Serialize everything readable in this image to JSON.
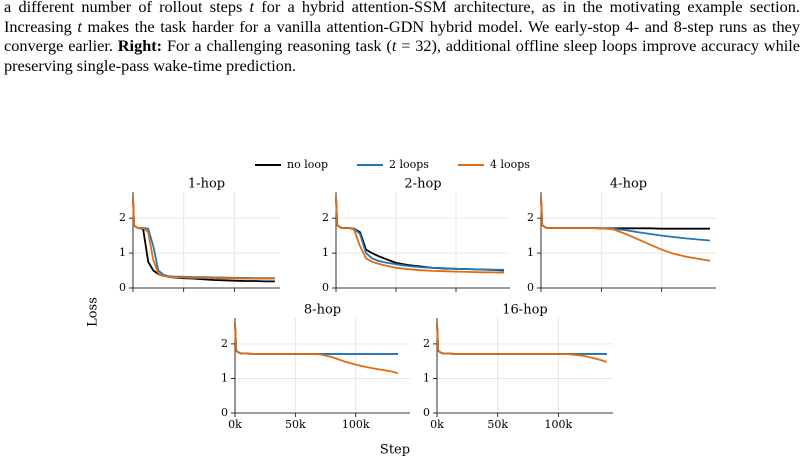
{
  "text": {
    "parts": [
      "a different number of rollout steps ",
      "t",
      " for a hybrid attention-SSM architecture, as in the motivating example section. Increasing ",
      "t",
      " makes the task harder for a vanilla attention-GDN hybrid model. We early-stop 4- and 8-step runs as they converge earlier. ",
      "Right:",
      " For a challenging reasoning task (",
      "t",
      " = 32), additional offline sleep loops improve accuracy while preserving single-pass wake-time prediction."
    ]
  },
  "figure": {
    "xlabel": "Step",
    "ylabel": "Loss"
  },
  "chart_data": [
    {
      "type": "line",
      "title": "1-hop",
      "x": [
        0,
        1000,
        3000,
        5000,
        10000,
        15000,
        20000,
        25000,
        30000,
        35000,
        40000,
        50000,
        60000,
        70000,
        80000,
        90000,
        100000,
        110000,
        120000,
        130000,
        140000
      ],
      "series": [
        {
          "name": "no loop",
          "color": "#000000",
          "values": [
            2.6,
            1.8,
            1.75,
            1.72,
            1.7,
            0.75,
            0.5,
            0.4,
            0.35,
            0.32,
            0.3,
            0.28,
            0.27,
            0.25,
            0.23,
            0.22,
            0.21,
            0.2,
            0.2,
            0.19,
            0.19
          ]
        },
        {
          "name": "2 loops",
          "color": "#1f77b4",
          "values": [
            2.6,
            1.8,
            1.75,
            1.72,
            1.72,
            1.7,
            1.2,
            0.5,
            0.38,
            0.34,
            0.33,
            0.32,
            0.31,
            0.31,
            0.3,
            0.3,
            0.29,
            0.29,
            0.28,
            0.28,
            0.28
          ]
        },
        {
          "name": "4 loops",
          "color": "#e06c12",
          "values": [
            2.6,
            1.8,
            1.75,
            1.72,
            1.72,
            1.6,
            0.8,
            0.42,
            0.35,
            0.32,
            0.31,
            0.3,
            0.29,
            0.29,
            0.28,
            0.28,
            0.28,
            0.27,
            0.27,
            0.27,
            0.27
          ]
        }
      ],
      "xlim": [
        0,
        145000
      ],
      "ylim": [
        0,
        2.75
      ],
      "xticks": [
        0,
        50000,
        100000
      ],
      "yticks": [
        0,
        1,
        2
      ],
      "grid": true
    },
    {
      "type": "line",
      "title": "2-hop",
      "x": [
        0,
        1000,
        3000,
        5000,
        10000,
        15000,
        20000,
        25000,
        30000,
        35000,
        40000,
        50000,
        60000,
        70000,
        80000,
        90000,
        100000,
        110000,
        120000,
        130000,
        140000
      ],
      "series": [
        {
          "color": "#000000",
          "values": [
            2.6,
            1.8,
            1.75,
            1.72,
            1.72,
            1.7,
            1.6,
            1.1,
            1.0,
            0.92,
            0.85,
            0.72,
            0.66,
            0.62,
            0.58,
            0.56,
            0.55,
            0.54,
            0.53,
            0.52,
            0.5
          ]
        },
        {
          "color": "#1f77b4",
          "values": [
            2.6,
            1.8,
            1.75,
            1.72,
            1.72,
            1.7,
            1.55,
            1.0,
            0.85,
            0.78,
            0.74,
            0.68,
            0.63,
            0.6,
            0.58,
            0.57,
            0.55,
            0.54,
            0.53,
            0.52,
            0.52
          ]
        },
        {
          "color": "#e06c12",
          "values": [
            2.6,
            1.8,
            1.75,
            1.72,
            1.72,
            1.68,
            1.2,
            0.85,
            0.75,
            0.7,
            0.65,
            0.58,
            0.54,
            0.51,
            0.49,
            0.48,
            0.47,
            0.46,
            0.45,
            0.45,
            0.44
          ]
        }
      ],
      "xlim": [
        0,
        145000
      ],
      "ylim": [
        0,
        2.75
      ],
      "xticks": [
        0,
        50000,
        100000
      ],
      "yticks": [
        0,
        1,
        2
      ],
      "grid": true
    },
    {
      "type": "line",
      "title": "4-hop",
      "x": [
        0,
        1000,
        3000,
        5000,
        10000,
        15000,
        20000,
        25000,
        30000,
        35000,
        40000,
        50000,
        60000,
        70000,
        80000,
        90000,
        100000,
        110000,
        120000,
        130000,
        140000
      ],
      "series": [
        {
          "color": "#000000",
          "values": [
            2.6,
            1.8,
            1.75,
            1.72,
            1.72,
            1.72,
            1.72,
            1.72,
            1.72,
            1.72,
            1.72,
            1.71,
            1.71,
            1.71,
            1.71,
            1.71,
            1.7,
            1.7,
            1.7,
            1.7,
            1.7
          ]
        },
        {
          "color": "#1f77b4",
          "values": [
            2.6,
            1.8,
            1.75,
            1.72,
            1.72,
            1.72,
            1.72,
            1.72,
            1.72,
            1.72,
            1.72,
            1.71,
            1.7,
            1.66,
            1.6,
            1.55,
            1.5,
            1.46,
            1.42,
            1.39,
            1.36
          ]
        },
        {
          "color": "#e06c12",
          "values": [
            2.6,
            1.8,
            1.75,
            1.72,
            1.72,
            1.72,
            1.72,
            1.72,
            1.72,
            1.72,
            1.72,
            1.71,
            1.68,
            1.55,
            1.4,
            1.25,
            1.1,
            0.98,
            0.9,
            0.84,
            0.78
          ]
        }
      ],
      "xlim": [
        0,
        145000
      ],
      "ylim": [
        0,
        2.75
      ],
      "xticks": [
        0,
        50000,
        100000
      ],
      "yticks": [
        0,
        1,
        2
      ],
      "grid": true
    },
    {
      "type": "line",
      "title": "8-hop",
      "x": [
        0,
        1000,
        3000,
        5000,
        10000,
        15000,
        20000,
        25000,
        30000,
        35000,
        40000,
        50000,
        60000,
        70000,
        80000,
        90000,
        100000,
        110000,
        120000,
        130000,
        135000
      ],
      "series": [
        {
          "color": "#000000",
          "values": [
            2.6,
            1.8,
            1.75,
            1.72,
            1.72,
            1.71,
            1.71,
            1.71,
            1.71,
            1.71,
            1.71,
            1.71,
            1.71,
            1.71,
            1.71,
            1.71,
            1.71,
            1.71,
            1.71,
            1.71,
            1.71
          ]
        },
        {
          "color": "#1f77b4",
          "values": [
            2.6,
            1.8,
            1.75,
            1.72,
            1.72,
            1.71,
            1.71,
            1.71,
            1.71,
            1.71,
            1.71,
            1.71,
            1.71,
            1.71,
            1.71,
            1.71,
            1.71,
            1.71,
            1.71,
            1.71,
            1.71
          ]
        },
        {
          "color": "#e06c12",
          "values": [
            2.6,
            1.8,
            1.75,
            1.72,
            1.72,
            1.71,
            1.71,
            1.71,
            1.71,
            1.71,
            1.71,
            1.71,
            1.71,
            1.7,
            1.62,
            1.5,
            1.4,
            1.32,
            1.26,
            1.2,
            1.15
          ]
        }
      ],
      "xlim": [
        0,
        145000
      ],
      "ylim": [
        0,
        2.75
      ],
      "xticks": [
        {
          "value": 0,
          "label": "0k"
        },
        {
          "value": 50000,
          "label": "50k"
        },
        {
          "value": 100000,
          "label": "100k"
        }
      ],
      "yticks": [
        0,
        1,
        2
      ],
      "grid": true
    },
    {
      "type": "line",
      "title": "16-hop",
      "x": [
        0,
        1000,
        3000,
        5000,
        10000,
        15000,
        20000,
        25000,
        30000,
        35000,
        40000,
        50000,
        60000,
        70000,
        80000,
        90000,
        100000,
        110000,
        120000,
        130000,
        140000
      ],
      "series": [
        {
          "color": "#000000",
          "values": [
            2.6,
            1.8,
            1.75,
            1.72,
            1.72,
            1.71,
            1.71,
            1.71,
            1.71,
            1.71,
            1.71,
            1.71,
            1.71,
            1.71,
            1.71,
            1.71,
            1.71,
            1.71,
            1.71,
            1.71,
            1.71
          ]
        },
        {
          "color": "#1f77b4",
          "values": [
            2.6,
            1.8,
            1.75,
            1.72,
            1.72,
            1.71,
            1.71,
            1.71,
            1.71,
            1.71,
            1.71,
            1.71,
            1.71,
            1.71,
            1.71,
            1.71,
            1.71,
            1.71,
            1.71,
            1.71,
            1.71
          ]
        },
        {
          "color": "#e06c12",
          "values": [
            2.6,
            1.8,
            1.75,
            1.72,
            1.72,
            1.71,
            1.71,
            1.71,
            1.71,
            1.71,
            1.71,
            1.71,
            1.71,
            1.71,
            1.71,
            1.71,
            1.71,
            1.7,
            1.66,
            1.58,
            1.48
          ]
        }
      ],
      "xlim": [
        0,
        145000
      ],
      "ylim": [
        0,
        2.75
      ],
      "xticks": [
        {
          "value": 0,
          "label": "0k"
        },
        {
          "value": 50000,
          "label": "50k"
        },
        {
          "value": 100000,
          "label": "100k"
        }
      ],
      "yticks": [
        0,
        1,
        2
      ],
      "grid": true
    }
  ]
}
